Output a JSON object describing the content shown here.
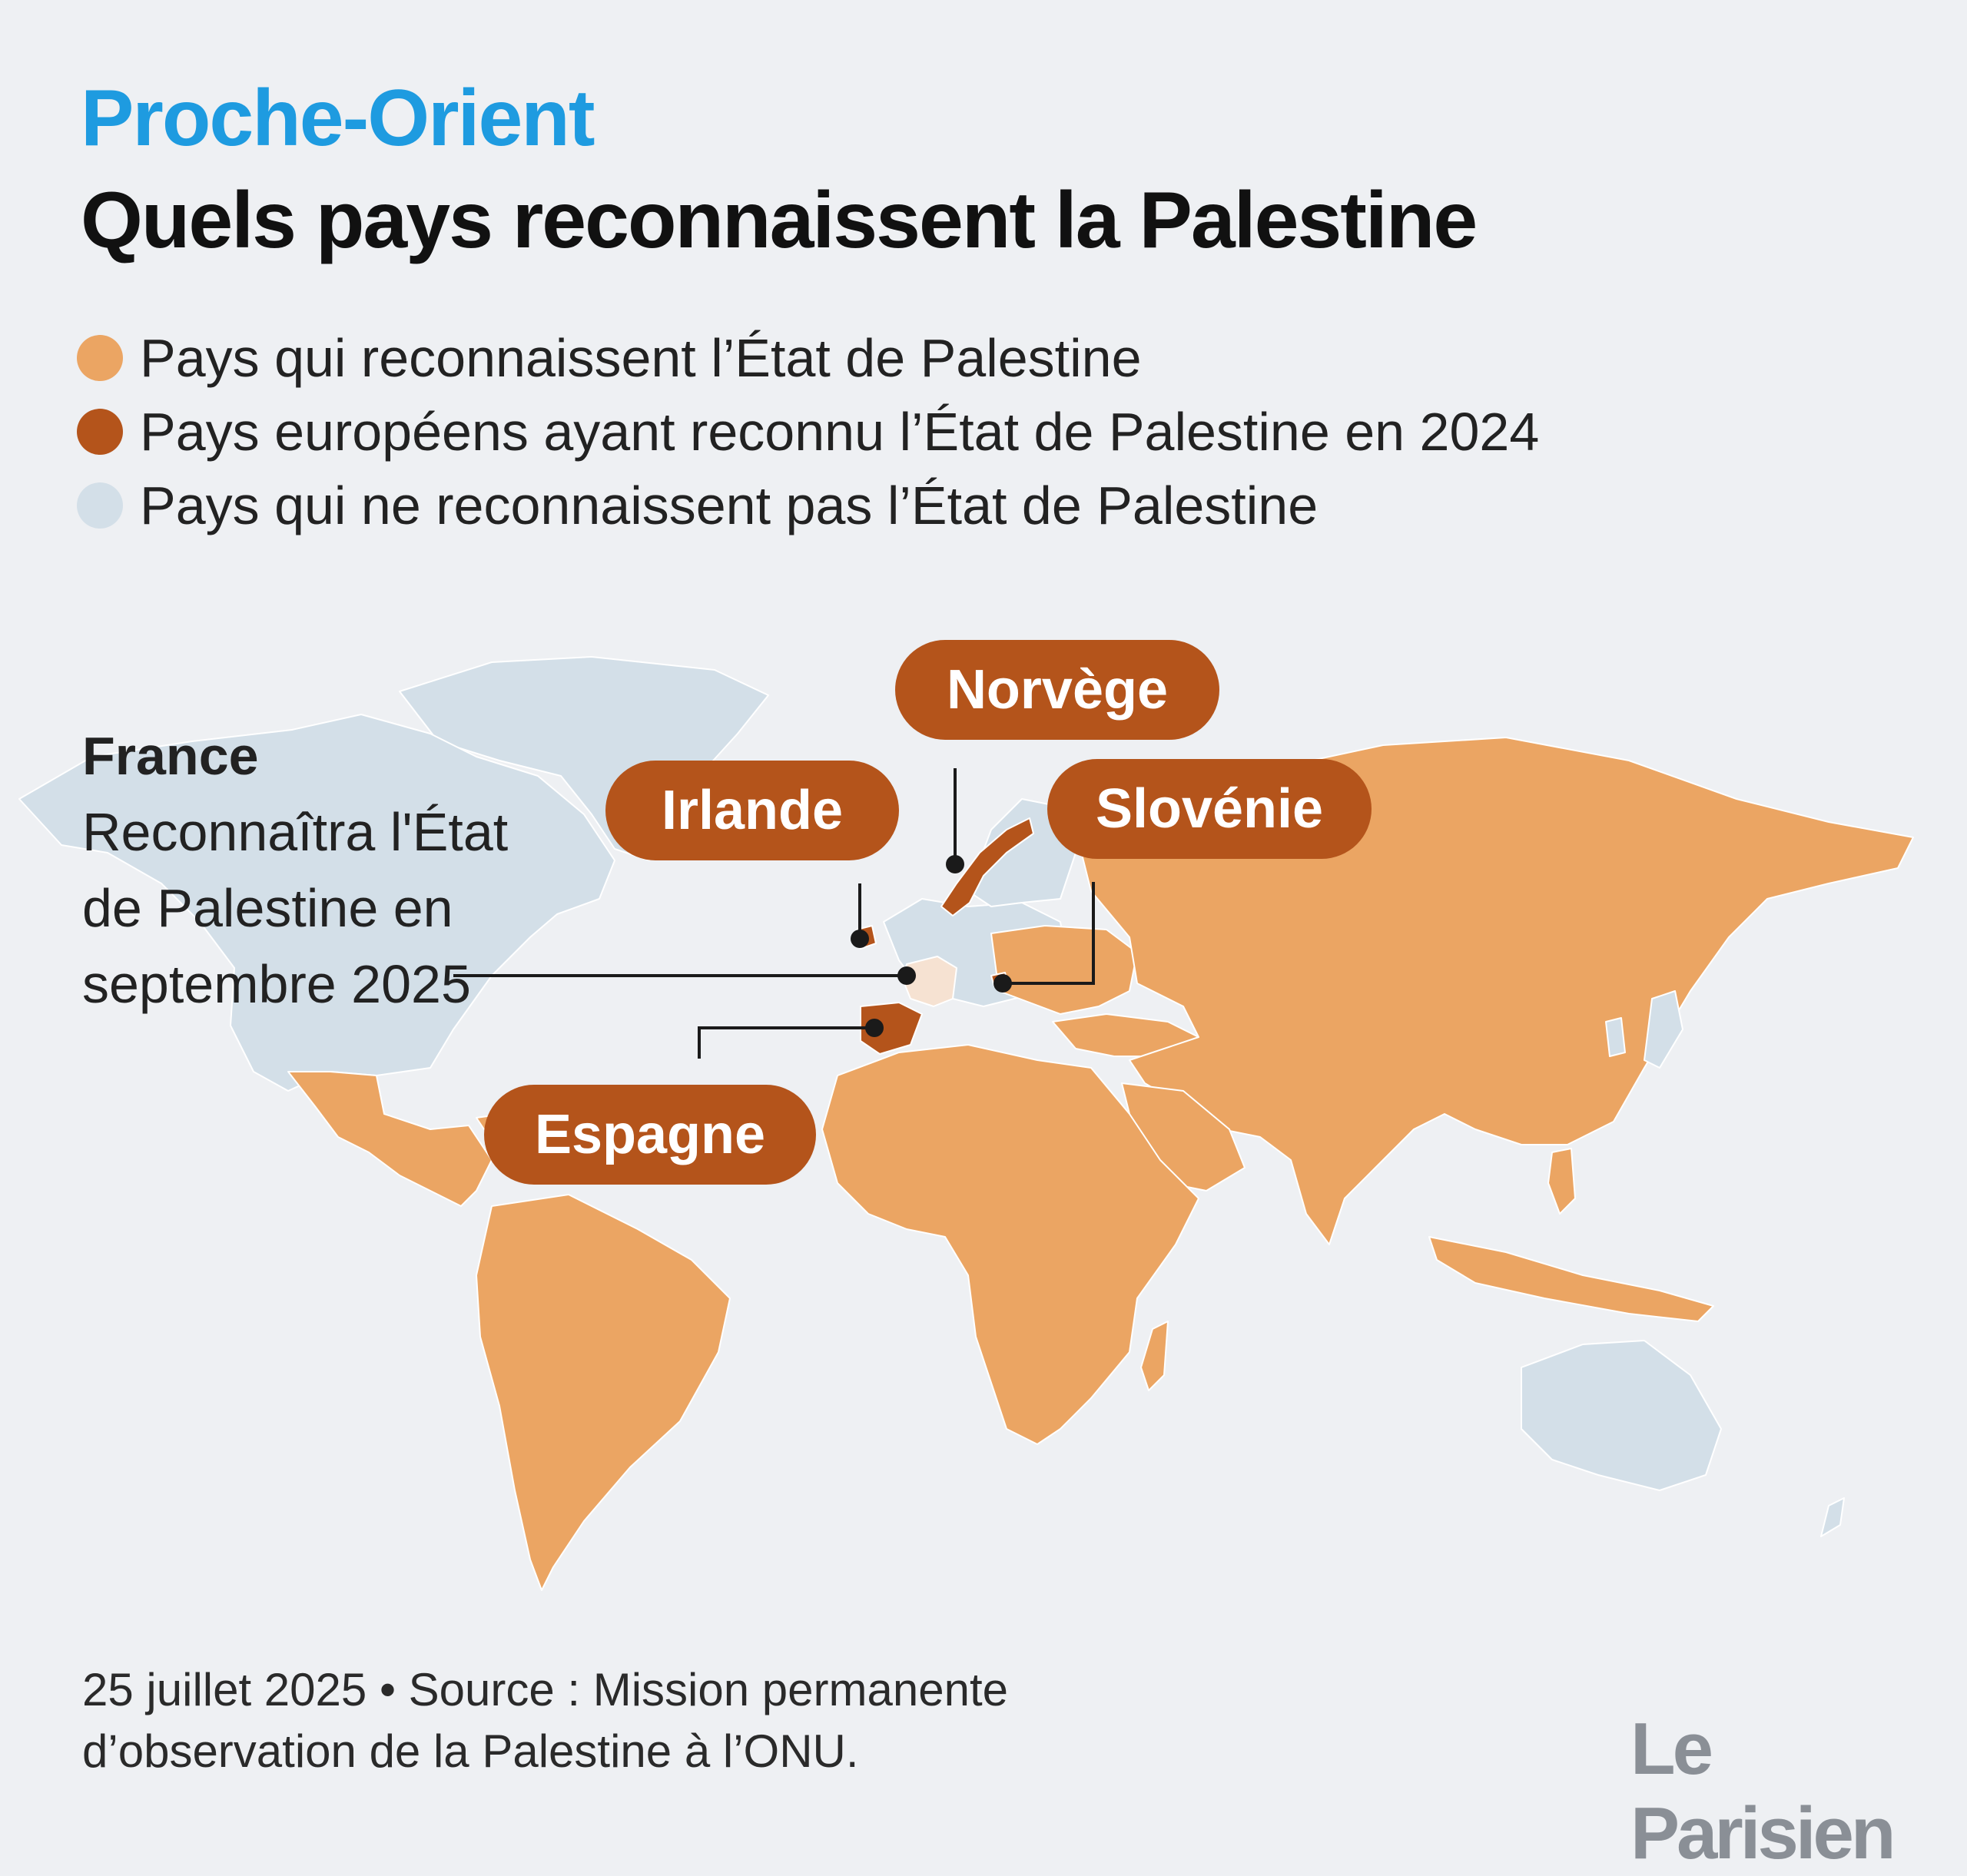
{
  "header": {
    "kicker": "Proche-Orient",
    "title": "Quels pays reconnaissent la Palestine"
  },
  "legend": [
    {
      "label": "Pays qui reconnaissent l’État de Palestine",
      "color": "#eba563"
    },
    {
      "label": "Pays européens ayant reconnu l’État de Palestine en 2024",
      "color": "#b4541b"
    },
    {
      "label": "Pays qui ne reconnaissent pas l’État de Palestine",
      "color": "#d3dfe8"
    }
  ],
  "colors": {
    "recognize": "#eba563",
    "europe_2024": "#b4541b",
    "not_recognize": "#d3dfe8",
    "france": "#f6e2d2",
    "background": "#eef0f3",
    "kicker": "#1e9be0"
  },
  "annotations": {
    "france": {
      "name": "France",
      "text": "Reconnaîtra l'État de Palestine en septembre 2025"
    },
    "callouts": [
      {
        "label": "Norvège"
      },
      {
        "label": "Irlande"
      },
      {
        "label": "Slovénie"
      },
      {
        "label": "Espagne"
      }
    ]
  },
  "footer": {
    "source_line1": "25 juillet 2025 • Source : Mission permanente",
    "source_line2": "d’observation de la Palestine à l’ONU."
  },
  "logo": "Le Parisien"
}
